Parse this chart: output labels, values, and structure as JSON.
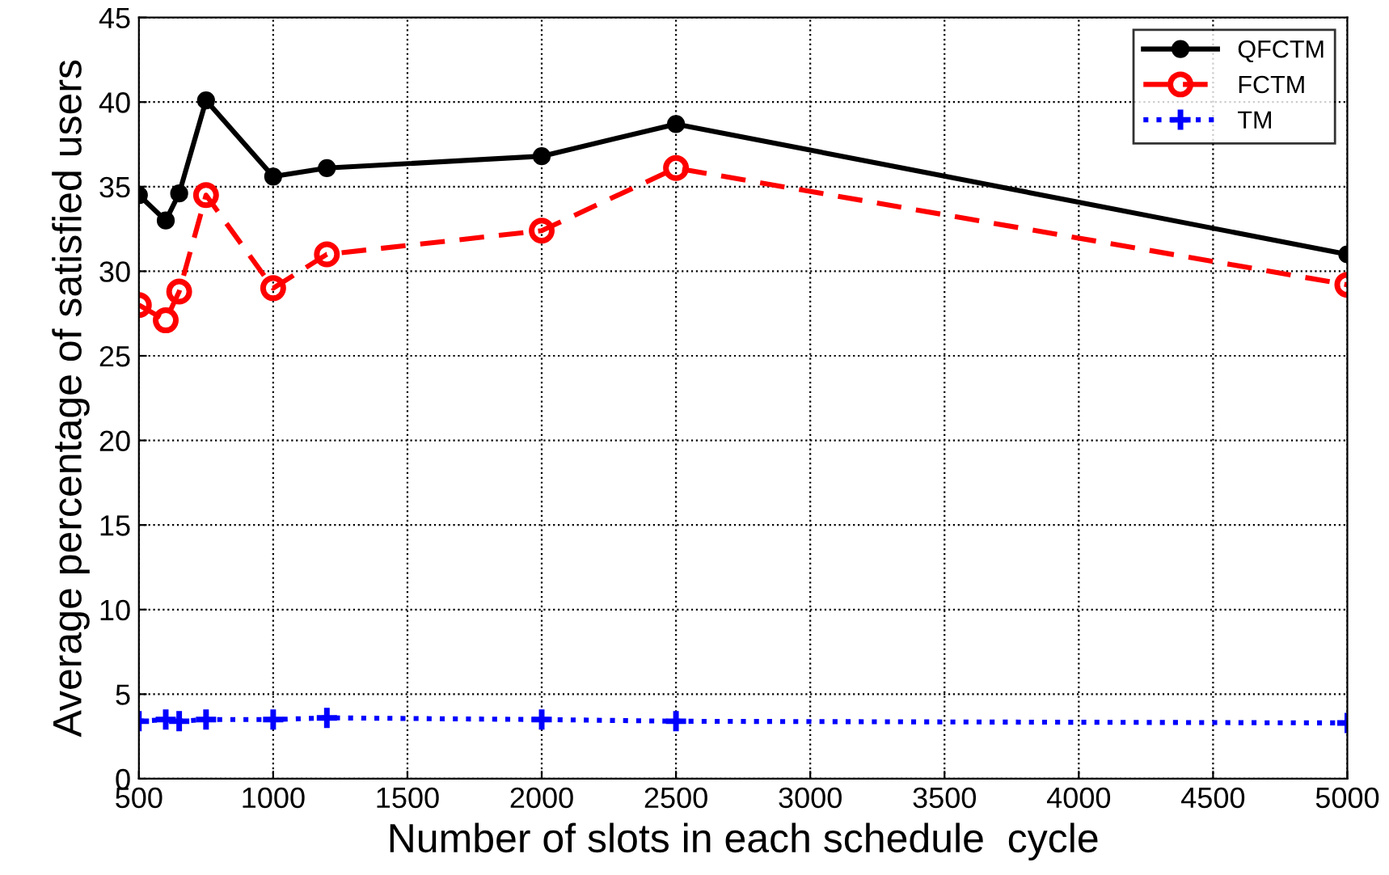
{
  "chart_data": {
    "type": "line",
    "xlabel": "Number of slots in each schedule  cycle",
    "ylabel": "Average percentage of satisfied users",
    "x": [
      500,
      600,
      650,
      750,
      1000,
      1200,
      2000,
      2500,
      5000
    ],
    "series": [
      {
        "name": "QFCTM",
        "color": "#000000",
        "marker": "circle",
        "line_style": "solid",
        "values": [
          34.5,
          33,
          34.6,
          40.1,
          35.6,
          36.1,
          36.8,
          38.7,
          31
        ]
      },
      {
        "name": "FCTM",
        "color": "#ff0000",
        "marker": "circle",
        "line_style": "dashed",
        "values": [
          28,
          27.1,
          28.8,
          34.5,
          29,
          31,
          32.4,
          36.1,
          29.2
        ]
      },
      {
        "name": "TM",
        "color": "#0000ff",
        "marker": "cross",
        "line_style": "dotted",
        "values": [
          3.4,
          3.5,
          3.4,
          3.5,
          3.5,
          3.6,
          3.5,
          3.4,
          3.3
        ]
      }
    ],
    "xlim": [
      500,
      5000
    ],
    "xticks": [
      500,
      1000,
      1500,
      2000,
      2500,
      3000,
      3500,
      4000,
      4500,
      5000
    ],
    "ylim": [
      0,
      45
    ],
    "yticks": [
      0,
      5,
      10,
      15,
      20,
      25,
      30,
      35,
      40,
      45
    ],
    "grid": true,
    "legend": "top right"
  }
}
